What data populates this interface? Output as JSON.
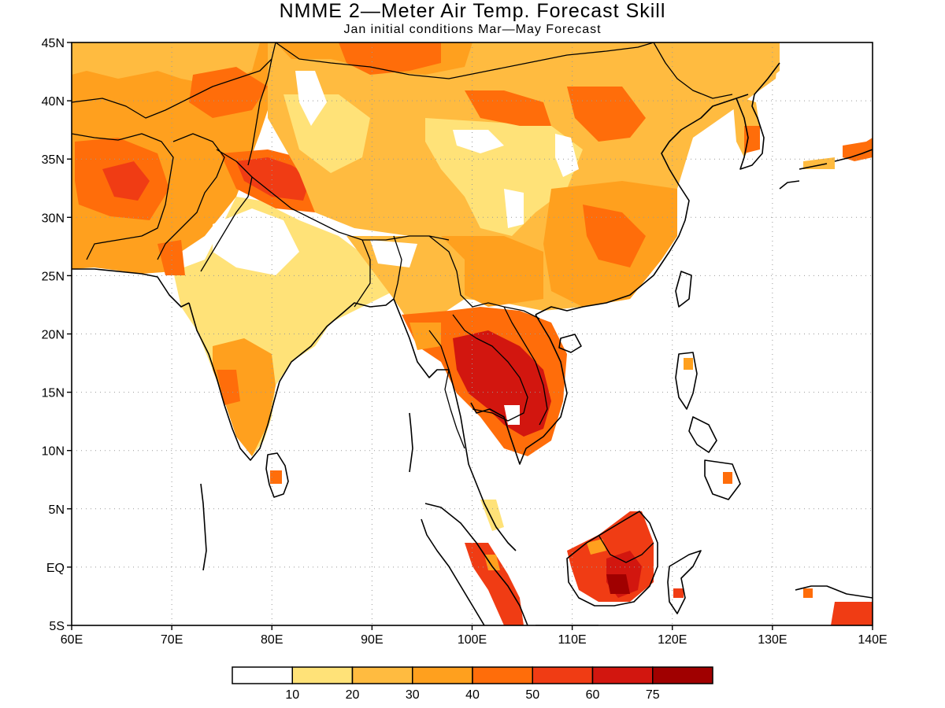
{
  "title": "NMME 2—Meter Air Temp. Forecast Skill",
  "subtitle": "Jan initial conditions  Mar—May Forecast",
  "map": {
    "lon_range": [
      60,
      140
    ],
    "lat_range": [
      -5,
      45
    ],
    "lat_labels": [
      "45N",
      "40N",
      "35N",
      "30N",
      "25N",
      "20N",
      "15N",
      "10N",
      "5N",
      "EQ",
      "5S"
    ],
    "lon_labels": [
      "60E",
      "70E",
      "80E",
      "90E",
      "100E",
      "110E",
      "120E",
      "130E",
      "140E"
    ],
    "grid": "dotted",
    "field": "2-meter air temperature forecast skill"
  },
  "colorbar": {
    "colors": [
      "#ffffff",
      "#ffe278",
      "#ffbb40",
      "#ffa01e",
      "#ff6d0a",
      "#f03c14",
      "#d2160f",
      "#a00000"
    ],
    "labels": [
      "10",
      "20",
      "30",
      "40",
      "50",
      "60",
      "75"
    ]
  }
}
